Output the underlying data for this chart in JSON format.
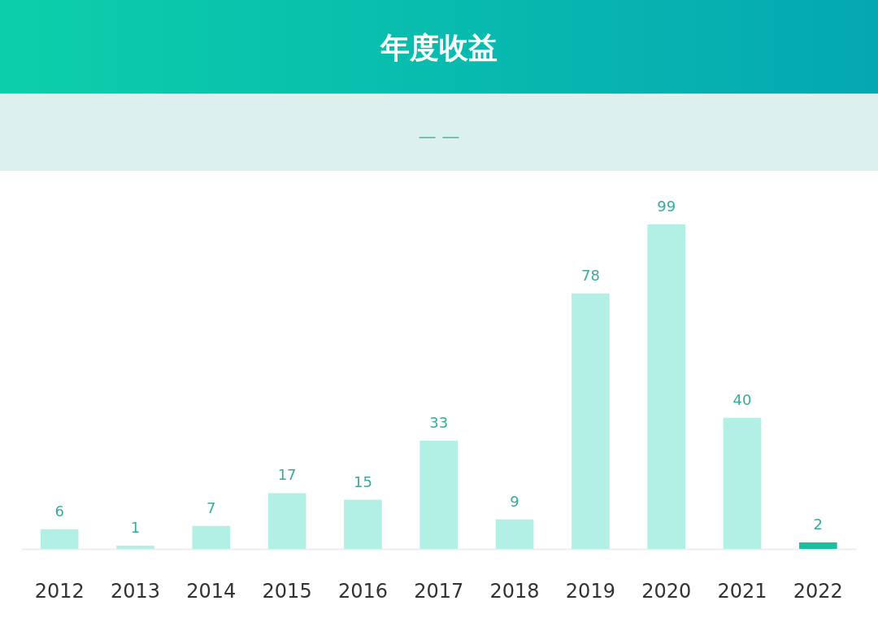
{
  "chart_data": {
    "type": "bar",
    "title": "年度收益",
    "subtitle": "— —",
    "categories": [
      "2012",
      "2013",
      "2014",
      "2015",
      "2016",
      "2017",
      "2018",
      "2019",
      "2020",
      "2021",
      "2022"
    ],
    "values": [
      6,
      1,
      7,
      17,
      15,
      33,
      9,
      78,
      99,
      40,
      2
    ],
    "colors": [
      "#b2efe5",
      "#b2efe5",
      "#b2efe5",
      "#b2efe5",
      "#b2efe5",
      "#b2efe5",
      "#b2efe5",
      "#b2efe5",
      "#b2efe5",
      "#b2efe5",
      "#1cc0a0"
    ],
    "data_labels": true,
    "tick_labels": "x"
  }
}
